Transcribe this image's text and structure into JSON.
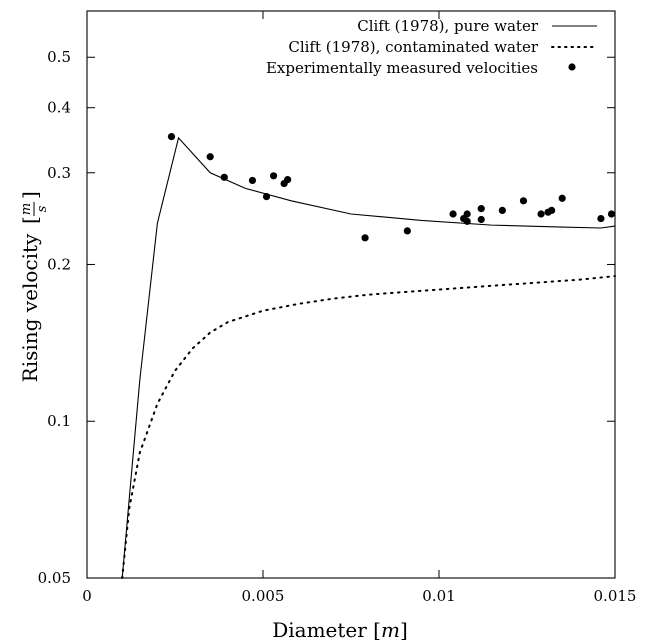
{
  "chart_data": {
    "type": "line",
    "title": "",
    "xlabel": "Diameter [m]",
    "xlabel_parts": {
      "text": "Diameter ",
      "unit": "m"
    },
    "ylabel": "Rising velocity [m/s]",
    "ylabel_parts": {
      "text": "Rising velocity",
      "unit_num": "m",
      "unit_den": "s"
    },
    "xlim": [
      0,
      0.015
    ],
    "ylim": [
      0.05,
      0.6
    ],
    "yscale": "log",
    "x_ticks": [
      0,
      0.005,
      0.01,
      0.015
    ],
    "x_tick_labels": [
      "0",
      "0.005",
      "0.01",
      "0.015"
    ],
    "y_ticks": [
      0.05,
      0.1,
      0.2,
      0.3,
      0.4,
      0.5
    ],
    "y_tick_labels": [
      "0.05",
      "0.1",
      "0.2",
      "0.3",
      "0.4",
      "0.5"
    ],
    "grid": false,
    "legend_position": "top-right",
    "series": [
      {
        "name": "Clift (1978), pure water",
        "style": "solid",
        "x": [
          0.001,
          0.0015,
          0.002,
          0.0026,
          0.0035,
          0.0045,
          0.0058,
          0.0075,
          0.0095,
          0.0115,
          0.0135,
          0.0146,
          0.015
        ],
        "y": [
          0.05,
          0.12,
          0.24,
          0.35,
          0.3,
          0.28,
          0.265,
          0.25,
          0.243,
          0.238,
          0.236,
          0.235,
          0.237
        ]
      },
      {
        "name": "Clift (1978), contaminated water",
        "style": "dotted",
        "x": [
          0.001,
          0.0012,
          0.0015,
          0.002,
          0.0025,
          0.003,
          0.0035,
          0.004,
          0.005,
          0.006,
          0.007,
          0.008,
          0.009,
          0.01,
          0.011,
          0.012,
          0.013,
          0.014,
          0.015
        ],
        "y": [
          0.05,
          0.068,
          0.087,
          0.108,
          0.125,
          0.138,
          0.148,
          0.155,
          0.163,
          0.168,
          0.172,
          0.175,
          0.177,
          0.179,
          0.181,
          0.183,
          0.185,
          0.187,
          0.19
        ]
      },
      {
        "name": "Experimentally measured velocities",
        "style": "points",
        "x": [
          0.0024,
          0.0035,
          0.0039,
          0.0047,
          0.0051,
          0.0053,
          0.0056,
          0.0057,
          0.0079,
          0.0091,
          0.0104,
          0.0107,
          0.0108,
          0.0108,
          0.0112,
          0.0112,
          0.0118,
          0.0124,
          0.0129,
          0.0131,
          0.0132,
          0.0135,
          0.0146,
          0.0149
        ],
        "y": [
          0.352,
          0.322,
          0.294,
          0.29,
          0.27,
          0.296,
          0.286,
          0.291,
          0.225,
          0.232,
          0.25,
          0.245,
          0.242,
          0.25,
          0.244,
          0.256,
          0.254,
          0.265,
          0.25,
          0.252,
          0.254,
          0.268,
          0.245,
          0.25
        ]
      }
    ]
  }
}
